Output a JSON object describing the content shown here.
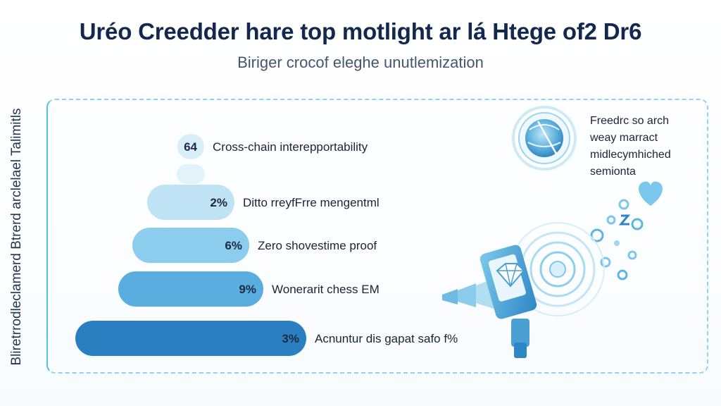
{
  "header": {
    "title": "Uréo Creedder hare top motlight ar lá Htege of2 Dr6",
    "subtitle": "Biriger crocof eleghe unutlemization"
  },
  "axis_label": "Bliretrrodleclamerd Btrerd arclelael Talimitls",
  "side_note": {
    "lines": [
      "Freedrc so arch",
      "weay marract",
      "midlecymhiched",
      "semionta"
    ]
  },
  "icons": [
    "globe-icon",
    "heart-icon",
    "gear-icon",
    "diamond-icon",
    "phone-icon",
    "signal-icon"
  ],
  "colors": {
    "title": "#13284f",
    "bar_light": "#cdeaf6",
    "bar_dark": "#2a7fc1",
    "frame": "#8fd3ec"
  },
  "chart_data": {
    "type": "bar",
    "orientation": "horizontal-funnel",
    "title": "Uréo Creedder hare top motlight ar lá Htege of2 Dr6",
    "subtitle": "Biriger crocof eleghe unutlemization",
    "ylabel": "Bliretrrodleclamerd Btrerd arclelael Talimitls",
    "xlabel": "",
    "categories": [
      "Cross-chain interepportability",
      "",
      "Ditto rreyfFrre mengentml",
      "Zero shovestime proof",
      "Wonerarit chess EM",
      "Acnuntur dis gapat safo f%"
    ],
    "value_labels": [
      "64",
      "",
      "2%",
      "6%",
      "9%",
      "3%"
    ],
    "values": [
      1,
      1,
      2,
      3,
      4,
      5
    ],
    "grid": false,
    "legend": "none"
  }
}
